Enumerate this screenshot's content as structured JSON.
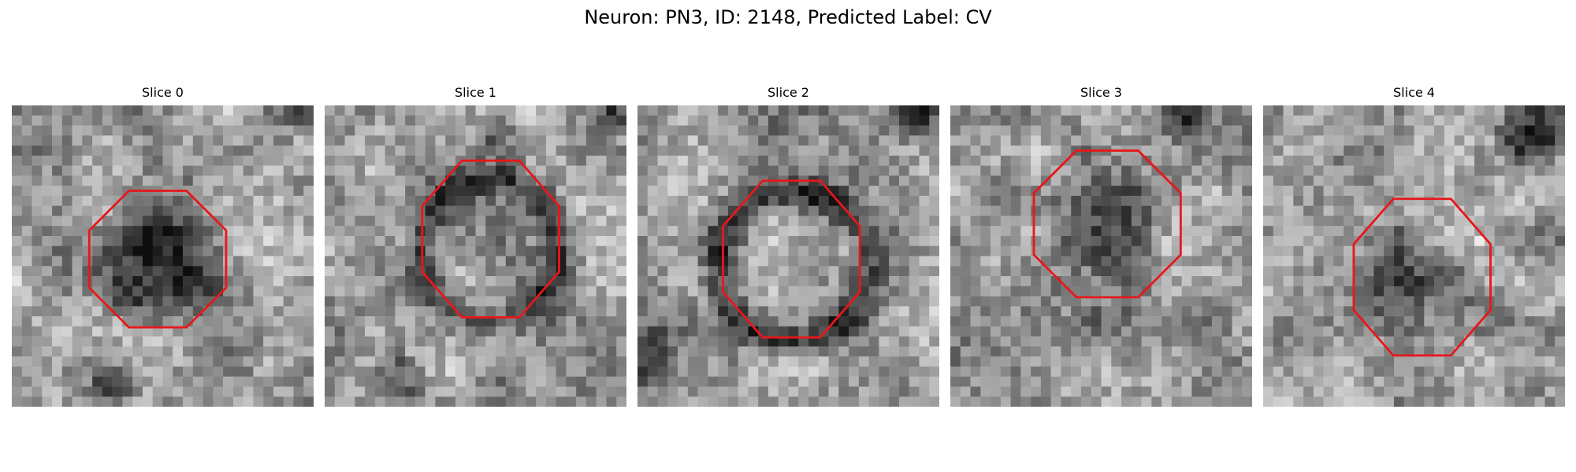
{
  "figure": {
    "title": "Neuron: PN3, ID: 2148, Predicted Label: CV"
  },
  "colors": {
    "contour": "#e8171a",
    "colormap": "grayscale"
  },
  "panels": [
    {
      "title": "Slice 0",
      "grid": 30,
      "seed": 11,
      "blobs": [
        {
          "cx": 14.5,
          "cy": 16,
          "r": 7.5,
          "amp": -0.45,
          "kind": "disk"
        },
        {
          "cx": 12,
          "cy": 19,
          "r": 3,
          "amp": -0.15,
          "kind": "disk"
        },
        {
          "cx": 10,
          "cy": 28,
          "r": 3,
          "amp": -0.25,
          "kind": "disk"
        },
        {
          "cx": 29,
          "cy": 0,
          "r": 2.5,
          "amp": -0.3,
          "kind": "disk"
        }
      ],
      "contour": {
        "cx": 14.5,
        "cy": 15.3,
        "rx": 6.8,
        "ry": 6.8
      }
    },
    {
      "title": "Slice 1",
      "grid": 30,
      "seed": 23,
      "blobs": [
        {
          "cx": 16.5,
          "cy": 14.5,
          "r": 7,
          "amp": -0.35,
          "kind": "ring"
        },
        {
          "cx": 29,
          "cy": 1,
          "r": 2.5,
          "amp": -0.4,
          "kind": "disk"
        },
        {
          "cx": 7,
          "cy": 27,
          "r": 3,
          "amp": -0.3,
          "kind": "disk"
        },
        {
          "cx": 17,
          "cy": 3,
          "r": 2,
          "amp": -0.2,
          "kind": "disk"
        }
      ],
      "contour": {
        "cx": 16.5,
        "cy": 13.3,
        "rx": 6.8,
        "ry": 7.8
      }
    },
    {
      "title": "Slice 2",
      "grid": 30,
      "seed": 37,
      "blobs": [
        {
          "cx": 15.5,
          "cy": 16,
          "r": 7.5,
          "amp": -0.4,
          "kind": "ring"
        },
        {
          "cx": 27.5,
          "cy": 1,
          "r": 3,
          "amp": -0.45,
          "kind": "disk"
        },
        {
          "cx": 1,
          "cy": 25,
          "r": 4,
          "amp": -0.3,
          "kind": "disk"
        }
      ],
      "contour": {
        "cx": 15.3,
        "cy": 15.3,
        "rx": 6.8,
        "ry": 7.8
      }
    },
    {
      "title": "Slice 3",
      "grid": 30,
      "seed": 53,
      "blobs": [
        {
          "cx": 15.5,
          "cy": 12,
          "r": 6.5,
          "amp": -0.3,
          "kind": "disk"
        },
        {
          "cx": 23,
          "cy": 1,
          "r": 3,
          "amp": -0.35,
          "kind": "disk"
        },
        {
          "cx": 14,
          "cy": 22,
          "r": 3,
          "amp": -0.15,
          "kind": "disk"
        }
      ],
      "contour": {
        "cx": 15.6,
        "cy": 11.8,
        "rx": 7.3,
        "ry": 7.3
      }
    },
    {
      "title": "Slice 4",
      "grid": 30,
      "seed": 71,
      "blobs": [
        {
          "cx": 15.5,
          "cy": 18,
          "r": 7,
          "amp": -0.25,
          "kind": "disk"
        },
        {
          "cx": 27,
          "cy": 2,
          "r": 4.5,
          "amp": -0.5,
          "kind": "disk"
        }
      ],
      "contour": {
        "cx": 15.8,
        "cy": 17.1,
        "rx": 6.8,
        "ry": 7.8
      }
    }
  ]
}
